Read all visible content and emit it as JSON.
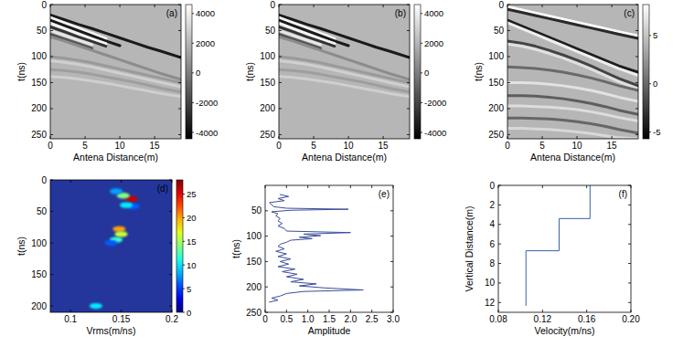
{
  "chart_data": [
    {
      "type": "image",
      "title": "(a)",
      "x_label": "Antena Distance(m)",
      "y_label": "t(ns)",
      "x": [
        0,
        2,
        4,
        6,
        8,
        10,
        12,
        14,
        16,
        18.8
      ],
      "xlim": [
        0,
        18.8
      ],
      "xticks": [
        0,
        5,
        10,
        15
      ],
      "ylim": [
        0,
        258
      ],
      "yticks": [
        0,
        50,
        100,
        150,
        200,
        250
      ],
      "colorbar": {
        "range": [
          -4430,
          4600
        ],
        "ticks": [
          -4000,
          -2000,
          0,
          2000,
          4000
        ]
      },
      "series": [
        {
          "color": "#1a1a1a",
          "values": [
            20,
            29,
            38,
            46,
            55,
            64,
            73,
            82,
            90,
            102
          ]
        },
        {
          "color": "#f4f4f4",
          "values": [
            25,
            35,
            45,
            55,
            65,
            null,
            null,
            null,
            null,
            null
          ]
        },
        {
          "color": "#1a1a1a",
          "values": [
            30,
            40,
            50,
            60,
            70,
            79,
            null,
            null,
            null,
            null
          ]
        },
        {
          "color": "#f4f4f4",
          "values": [
            36,
            46,
            56,
            66,
            75,
            null,
            null,
            null,
            null,
            null
          ]
        },
        {
          "color": "#333333",
          "values": [
            43,
            52,
            62,
            71,
            80,
            null,
            null,
            null,
            null,
            null
          ]
        },
        {
          "color": "#e6e6e6",
          "values": [
            50,
            59,
            68,
            77,
            null,
            null,
            null,
            null,
            null,
            null
          ]
        },
        {
          "color": "#555555",
          "values": [
            57,
            66,
            75,
            84,
            null,
            null,
            null,
            null,
            null,
            null
          ]
        },
        {
          "color": "#8c8c8c",
          "values": [
            62,
            70,
            79,
            88,
            97,
            106,
            115,
            124,
            133,
            144
          ]
        },
        {
          "color": "#9a9a9a",
          "values": [
            100,
            103,
            107,
            112,
            118,
            124,
            130,
            136,
            142,
            150
          ]
        },
        {
          "color": "#d0d0d0",
          "values": [
            108,
            111,
            115,
            120,
            126,
            132,
            138,
            144,
            150,
            158
          ]
        },
        {
          "color": "#9e9e9e",
          "values": [
            125,
            127,
            130,
            134,
            139,
            144,
            149,
            155,
            161,
            168
          ]
        },
        {
          "color": "#cfcfcf",
          "values": [
            138,
            140,
            143,
            147,
            151,
            156,
            161,
            166,
            171,
            177
          ]
        }
      ]
    },
    {
      "type": "image",
      "title": "(b)",
      "x_label": "Antena Distance(m)",
      "y_label": "t(ns)",
      "x": [
        0,
        2,
        4,
        6,
        8,
        10,
        12,
        14,
        16,
        18.8
      ],
      "xlim": [
        0,
        18.8
      ],
      "xticks": [
        0,
        5,
        10,
        15
      ],
      "ylim": [
        0,
        258
      ],
      "yticks": [
        0,
        50,
        100,
        150,
        200,
        250
      ],
      "colorbar": {
        "range": [
          -4430,
          4600
        ],
        "ticks": [
          -4000,
          -2000,
          0,
          2000,
          4000
        ]
      },
      "series": [
        {
          "color": "#1a1a1a",
          "values": [
            20,
            29,
            38,
            46,
            55,
            64,
            73,
            82,
            90,
            102
          ]
        },
        {
          "color": "#f4f4f4",
          "values": [
            25,
            35,
            45,
            55,
            65,
            null,
            null,
            null,
            null,
            null
          ]
        },
        {
          "color": "#1a1a1a",
          "values": [
            30,
            40,
            50,
            60,
            70,
            79,
            null,
            null,
            null,
            null
          ]
        },
        {
          "color": "#f4f4f4",
          "values": [
            36,
            46,
            56,
            66,
            75,
            null,
            null,
            null,
            null,
            null
          ]
        },
        {
          "color": "#333333",
          "values": [
            43,
            52,
            62,
            71,
            80,
            null,
            null,
            null,
            null,
            null
          ]
        },
        {
          "color": "#e6e6e6",
          "values": [
            50,
            59,
            68,
            77,
            null,
            null,
            null,
            null,
            null,
            null
          ]
        },
        {
          "color": "#555555",
          "values": [
            57,
            66,
            75,
            84,
            null,
            null,
            null,
            null,
            null,
            null
          ]
        },
        {
          "color": "#8c8c8c",
          "values": [
            62,
            70,
            79,
            88,
            97,
            106,
            115,
            124,
            133,
            144
          ]
        },
        {
          "color": "#9a9a9a",
          "values": [
            100,
            103,
            107,
            112,
            118,
            124,
            130,
            136,
            142,
            150
          ]
        },
        {
          "color": "#d0d0d0",
          "values": [
            108,
            111,
            115,
            120,
            126,
            132,
            138,
            144,
            150,
            158
          ]
        },
        {
          "color": "#9e9e9e",
          "values": [
            125,
            127,
            130,
            134,
            139,
            144,
            149,
            155,
            161,
            168
          ]
        },
        {
          "color": "#cfcfcf",
          "values": [
            138,
            140,
            143,
            147,
            151,
            156,
            161,
            166,
            171,
            177
          ]
        }
      ]
    },
    {
      "type": "image",
      "title": "(c)",
      "x_label": "Antena Distance(m)",
      "y_label": "t(ns)",
      "x": [
        0,
        2,
        4,
        6,
        8,
        10,
        12,
        14,
        16,
        18.8
      ],
      "xlim": [
        0,
        18.8
      ],
      "xticks": [
        0,
        5,
        10,
        15
      ],
      "ylim": [
        0,
        258
      ],
      "yticks": [
        0,
        50,
        100,
        150,
        200,
        250
      ],
      "colorbar": {
        "range": [
          -5.7,
          8.2
        ],
        "ticks": [
          -5,
          0,
          5
        ]
      },
      "series": [
        {
          "color": "#fafafa",
          "values": [
            4,
            10,
            16,
            22,
            28,
            34,
            40,
            46,
            52,
            60
          ]
        },
        {
          "color": "#2a2a2a",
          "values": [
            9,
            15,
            21,
            27,
            33,
            39,
            45,
            51,
            57,
            65
          ]
        },
        {
          "color": "#1e1e1e",
          "values": [
            30,
            41,
            52,
            63,
            74,
            85,
            96,
            107,
            118,
            130
          ]
        },
        {
          "color": "#eeeeee",
          "values": [
            35,
            46,
            57,
            68,
            79,
            90,
            101,
            112,
            123,
            136
          ]
        },
        {
          "color": "#444444",
          "values": [
            70,
            74,
            80,
            88,
            97,
            107,
            118,
            130,
            142,
            156
          ]
        },
        {
          "color": "#e0e0e0",
          "values": [
            76,
            80,
            86,
            94,
            103,
            113,
            124,
            136,
            148,
            162
          ]
        },
        {
          "color": "#6a6a6a",
          "values": [
            120,
            121,
            123,
            126,
            130,
            135,
            141,
            148,
            156,
            165
          ]
        },
        {
          "color": "#e2e2e2",
          "values": [
            150,
            150,
            151,
            153,
            156,
            160,
            165,
            171,
            178,
            186
          ]
        },
        {
          "color": "#5e5e5e",
          "values": [
            175,
            175,
            176,
            178,
            181,
            185,
            190,
            196,
            203,
            211
          ]
        },
        {
          "color": "#dddddd",
          "values": [
            195,
            195,
            196,
            197,
            199,
            202,
            206,
            211,
            217,
            224
          ]
        },
        {
          "color": "#666666",
          "values": [
            218,
            218,
            219,
            220,
            222,
            225,
            229,
            234,
            240,
            247
          ]
        },
        {
          "color": "#d8d8d8",
          "values": [
            238,
            238,
            239,
            240,
            242,
            245,
            248,
            252,
            256,
            258
          ]
        }
      ]
    },
    {
      "type": "scatter",
      "title": "(d)",
      "x_label": "Vrms(m/ns)",
      "y_label": "t(ns)",
      "x": [
        0.16,
        0.152,
        0.145,
        0.162,
        0.155,
        0.148,
        0.15,
        0.145,
        0.14,
        0.125
      ],
      "values": [
        30,
        25,
        18,
        42,
        40,
        78,
        86,
        95,
        100,
        200
      ],
      "intensity": [
        26,
        14,
        8,
        6,
        10,
        20,
        16,
        12,
        6,
        10
      ],
      "xlim": [
        0.08,
        0.2
      ],
      "xticks": [
        0.1,
        0.15,
        0.2
      ],
      "ylim": [
        0,
        210
      ],
      "yticks": [
        0,
        50,
        100,
        150,
        200
      ],
      "colorbar": {
        "range": [
          0,
          28
        ],
        "ticks": [
          0,
          5,
          10,
          15,
          20,
          25
        ]
      }
    },
    {
      "type": "line",
      "title": "(e)",
      "x_label": "Amplitude",
      "y_label": "t(ns)",
      "x": [
        0.35,
        0.55,
        0.3,
        0.45,
        0.1,
        0.15,
        0.2,
        0.5,
        1.95,
        0.6,
        0.15,
        0.3,
        0.25,
        0.35,
        0.3,
        0.4,
        0.3,
        0.45,
        0.5,
        2.0,
        0.9,
        1.3,
        0.8,
        1.1,
        0.6,
        0.5,
        0.35,
        0.3,
        0.45,
        0.25,
        0.5,
        0.3,
        0.6,
        0.35,
        0.55,
        0.3,
        0.7,
        0.4,
        0.75,
        0.5,
        0.9,
        0.6,
        1.2,
        0.8,
        1.4,
        2.3,
        0.9,
        0.5,
        0.35,
        0.15,
        0.3,
        0.1
      ],
      "series": [
        {
          "color": "#3b4e99",
          "values": [
            18,
            22,
            26,
            30,
            34,
            38,
            42,
            45,
            47,
            49,
            52,
            56,
            60,
            65,
            70,
            75,
            80,
            85,
            90,
            93,
            96,
            99,
            102,
            105,
            108,
            112,
            116,
            120,
            125,
            130,
            135,
            140,
            145,
            150,
            155,
            160,
            165,
            170,
            175,
            180,
            185,
            190,
            194,
            198,
            202,
            206,
            209,
            213,
            218,
            222,
            226,
            230
          ]
        }
      ],
      "xlim": [
        0,
        3
      ],
      "xticks": [
        0,
        0.5,
        {
          "value": 1,
          "label": "1.0"
        },
        1.5,
        {
          "value": 2,
          "label": "2.0"
        },
        2.5,
        {
          "value": 3,
          "label": "3.0"
        }
      ],
      "ylim": [
        0,
        250
      ],
      "yticks": [
        50,
        100,
        150,
        200,
        250
      ]
    },
    {
      "type": "line",
      "title": "(f)",
      "x_label": "Velocity(m/ns)",
      "y_label": "Vertical Distance(m)",
      "x": [
        0.163,
        0.163,
        0.135,
        0.135,
        0.105,
        0.105
      ],
      "series": [
        {
          "color": "#3a5fa8",
          "values": [
            0,
            3.4,
            3.4,
            6.7,
            6.7,
            12.3
          ]
        }
      ],
      "xlim": [
        0.08,
        0.2
      ],
      "xticks": [
        0.08,
        0.12,
        0.16,
        {
          "value": 0.2,
          "label": "0.20"
        }
      ],
      "ylim": [
        0,
        13
      ],
      "yticks": [
        0,
        2,
        4,
        6,
        8,
        10,
        12
      ]
    }
  ]
}
